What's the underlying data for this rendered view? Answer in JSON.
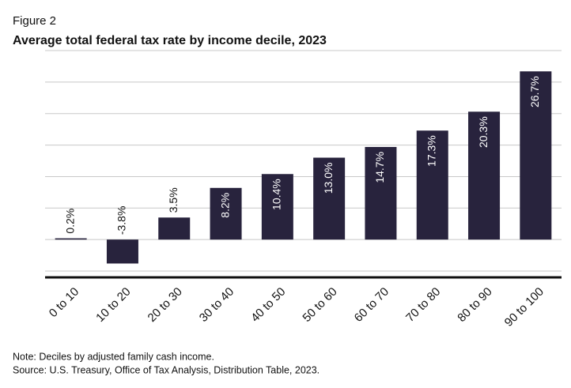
{
  "chart_data": {
    "type": "bar",
    "figure_label": "Figure 2",
    "title": "Average total federal tax rate by income decile, 2023",
    "categories": [
      "0 to 10",
      "10 to 20",
      "20 to 30",
      "30 to 40",
      "40 to 50",
      "50 to 60",
      "60 to 70",
      "70 to 80",
      "80 to 90",
      "90 to 100"
    ],
    "values": [
      0.2,
      -3.8,
      3.5,
      8.2,
      10.4,
      13.0,
      14.7,
      17.3,
      20.3,
      26.7
    ],
    "value_labels": [
      "0.2%",
      "-3.8%",
      "3.5%",
      "8.2%",
      "10.4%",
      "13.0%",
      "14.7%",
      "17.3%",
      "20.3%",
      "26.7%"
    ],
    "color": "#28233d",
    "ylim": [
      -6,
      30
    ],
    "yticks": [
      -5,
      0,
      5,
      10,
      15,
      20,
      25,
      30
    ],
    "grid": true,
    "notes": [
      "Note: Deciles by adjusted family cash income.",
      "Source: U.S. Treasury, Office of Tax Analysis, Distribution Table, 2023."
    ]
  }
}
